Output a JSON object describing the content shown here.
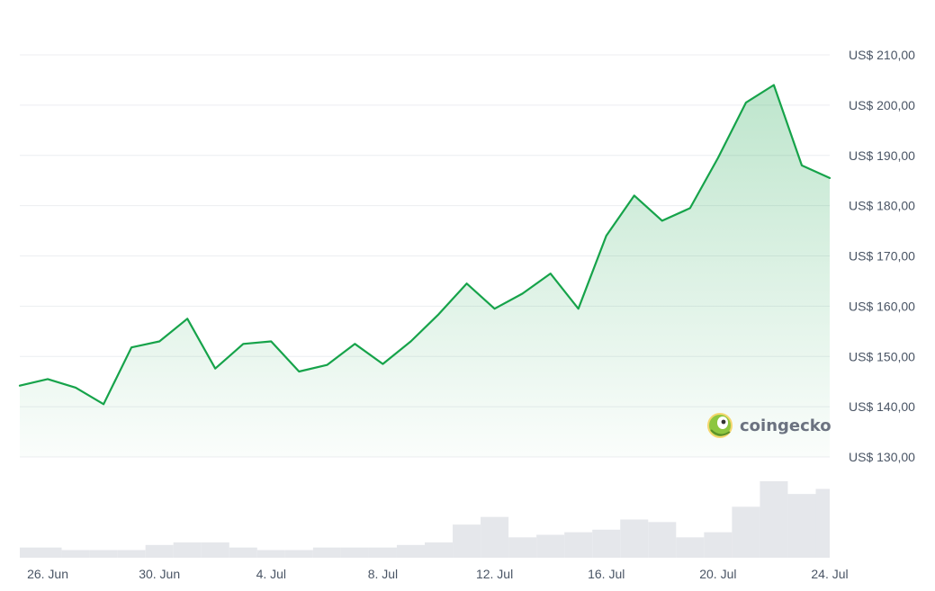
{
  "chart_data": {
    "type": "area",
    "series": [
      {
        "x": [
          "25. Jun",
          "26. Jun",
          "27. Jun",
          "28. Jun",
          "29. Jun",
          "30. Jun",
          "1. Jul",
          "2. Jul",
          "3. Jul",
          "4. Jul",
          "5. Jul",
          "6. Jul",
          "7. Jul",
          "8. Jul",
          "9. Jul",
          "10. Jul",
          "11. Jul",
          "12. Jul",
          "13. Jul",
          "14. Jul",
          "15. Jul",
          "16. Jul",
          "17. Jul",
          "18. Jul",
          "19. Jul",
          "20. Jul",
          "21. Jul",
          "22. Jul",
          "23. Jul",
          "24. Jul"
        ],
        "values": [
          144.2,
          145.5,
          143.8,
          140.5,
          151.8,
          153.0,
          157.5,
          147.6,
          152.5,
          153.0,
          147.0,
          148.3,
          152.5,
          148.5,
          153.0,
          158.4,
          164.5,
          159.5,
          162.5,
          166.5,
          159.5,
          174.0,
          182.0,
          177.0,
          179.5,
          189.5,
          200.5,
          204.0,
          188.0,
          185.5
        ]
      }
    ],
    "volume": [
      4,
      4,
      3,
      3,
      3,
      5,
      6,
      6,
      4,
      3,
      3,
      4,
      4,
      4,
      5,
      6,
      13,
      16,
      8,
      9,
      10,
      11,
      15,
      14,
      8,
      10,
      20,
      30,
      25,
      27
    ],
    "y_ticks": [
      "US$ 210,00",
      "US$ 200,00",
      "US$ 190,00",
      "US$ 180,00",
      "US$ 170,00",
      "US$ 160,00",
      "US$ 150,00",
      "US$ 140,00",
      "US$ 130,00"
    ],
    "y_tick_values": [
      210,
      200,
      190,
      180,
      170,
      160,
      150,
      140,
      130
    ],
    "x_ticks": [
      "26. Jun",
      "30. Jun",
      "4. Jul",
      "8. Jul",
      "12. Jul",
      "16. Jul",
      "20. Jul",
      "24. Jul"
    ],
    "x_tick_index": [
      1,
      5,
      9,
      13,
      17,
      21,
      25,
      29
    ],
    "ylim": [
      130,
      210
    ],
    "grid": true,
    "colors": {
      "line": "#16a34a",
      "fill": "#16a34a",
      "volume": "#e5e7eb"
    }
  },
  "watermark": {
    "text": "coingecko",
    "icon": "gecko-icon"
  }
}
